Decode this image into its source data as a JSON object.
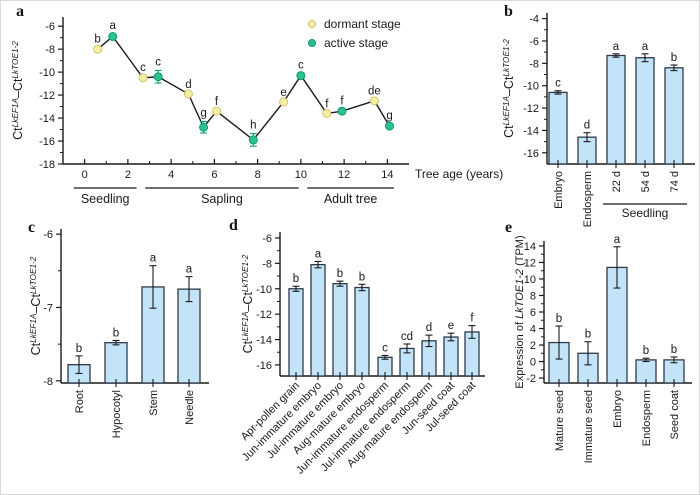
{
  "figure": {
    "panels": {
      "a": {
        "label": "a"
      },
      "b": {
        "label": "b"
      },
      "c": {
        "label": "c"
      },
      "d": {
        "label": "d"
      },
      "e": {
        "label": "e"
      }
    },
    "colors": {
      "bar_fill": "#c3e4f8",
      "bar_stroke": "#2f3b49",
      "dormant_fill": "#f4eea6",
      "dormant_stroke": "#d5c568",
      "active_fill": "#2bbf92",
      "active_stroke": "#0d9c73",
      "axis": "#1a1a1a",
      "text": "#1a1a1a",
      "line": "#1a1a1a"
    }
  },
  "chart_data": [
    {
      "panel": "a",
      "type": "line",
      "xlabel": "Tree age (years)",
      "ylabel_parts": [
        {
          "t": "Ct"
        },
        {
          "t": "LkEF1A",
          "sup": true
        },
        {
          "t": "–"
        },
        {
          "t": "Ct"
        },
        {
          "t": "LkTOE1-2",
          "sup": true
        }
      ],
      "xlim": [
        -1,
        15
      ],
      "ylim": [
        -18,
        -5.2
      ],
      "xticks": [
        0,
        2,
        4,
        6,
        8,
        10,
        12,
        14
      ],
      "x_minor_step": 1,
      "yticks": [
        -6,
        -8,
        -10,
        -12,
        -14,
        -16,
        -18
      ],
      "y_minor_step": 1,
      "legend": [
        {
          "label": "dormant stage",
          "stage": "dormant"
        },
        {
          "label": "active stage",
          "stage": "active"
        }
      ],
      "points": [
        {
          "x": 0.6,
          "y": -8.0,
          "err": 0.15,
          "letter": "b",
          "stage": "dormant"
        },
        {
          "x": 1.3,
          "y": -6.9,
          "err": 0.2,
          "letter": "a",
          "stage": "active"
        },
        {
          "x": 2.7,
          "y": -10.5,
          "err": 0.15,
          "letter": "c",
          "stage": "dormant"
        },
        {
          "x": 3.4,
          "y": -10.4,
          "err": 0.55,
          "letter": "c",
          "stage": "active"
        },
        {
          "x": 4.8,
          "y": -11.9,
          "err": 0.1,
          "letter": "d",
          "stage": "dormant"
        },
        {
          "x": 5.5,
          "y": -14.8,
          "err": 0.5,
          "letter": "g",
          "stage": "active"
        },
        {
          "x": 6.1,
          "y": -13.4,
          "err": 0.1,
          "letter": "f",
          "stage": "dormant"
        },
        {
          "x": 7.8,
          "y": -15.9,
          "err": 0.55,
          "letter": "h",
          "stage": "active"
        },
        {
          "x": 9.2,
          "y": -12.6,
          "err": 0.1,
          "letter": "e",
          "stage": "dormant"
        },
        {
          "x": 10.0,
          "y": -10.3,
          "err": 0.2,
          "letter": "c",
          "stage": "active"
        },
        {
          "x": 11.2,
          "y": -13.6,
          "err": 0.1,
          "letter": "f",
          "stage": "dormant"
        },
        {
          "x": 11.9,
          "y": -13.4,
          "err": 0.15,
          "letter": "f",
          "stage": "active"
        },
        {
          "x": 13.4,
          "y": -12.5,
          "err": 0.1,
          "letter": "de",
          "stage": "dormant"
        },
        {
          "x": 14.1,
          "y": -14.7,
          "err": 0.2,
          "letter": "g",
          "stage": "active"
        }
      ],
      "stage_groups": [
        {
          "label": "Seedling",
          "from": -0.5,
          "to": 2.4
        },
        {
          "label": "Sapling",
          "from": 2.8,
          "to": 9.9
        },
        {
          "label": "Adult tree",
          "from": 10.3,
          "to": 14.3
        }
      ]
    },
    {
      "panel": "b",
      "type": "bar",
      "ylabel_parts": [
        {
          "t": "Ct"
        },
        {
          "t": "LkEF1A",
          "sup": true
        },
        {
          "t": "–"
        },
        {
          "t": "Ct"
        },
        {
          "t": "LkTOE1-2",
          "sup": true
        }
      ],
      "ylim": [
        -17,
        -3.5
      ],
      "yticks": [
        -4,
        -6,
        -8,
        -10,
        -12,
        -14,
        -16
      ],
      "y_minor_step": 1,
      "categories": [
        "Embryo",
        "Endosperm",
        "22 d",
        "54 d",
        "74 d"
      ],
      "values": [
        -10.6,
        -14.6,
        -7.3,
        -7.5,
        -8.4
      ],
      "errors": [
        0.15,
        0.4,
        0.15,
        0.35,
        0.25
      ],
      "letters": [
        "c",
        "d",
        "a",
        "a",
        "b"
      ],
      "group": {
        "label": "Seedling",
        "from": 2,
        "to": 4
      }
    },
    {
      "panel": "c",
      "type": "bar",
      "ylabel_parts": [
        {
          "t": "Ct"
        },
        {
          "t": "LkEF1A",
          "sup": true
        },
        {
          "t": "–"
        },
        {
          "t": "Ct"
        },
        {
          "t": "LkTOE1-2",
          "sup": true
        }
      ],
      "ylim": [
        -8.03,
        -5.93
      ],
      "yticks": [
        -6,
        -7,
        -8
      ],
      "y_minor_step": 0.5,
      "categories": [
        "Root",
        "Hypocotyl",
        "Stem",
        "Needle"
      ],
      "values": [
        -7.78,
        -7.48,
        -6.72,
        -6.75
      ],
      "errors": [
        0.12,
        0.03,
        0.29,
        0.17
      ],
      "letters": [
        "b",
        "b",
        "a",
        "a"
      ]
    },
    {
      "panel": "d",
      "type": "bar",
      "ylabel_parts": [
        {
          "t": "Ct"
        },
        {
          "t": "LkEF1A",
          "sup": true
        },
        {
          "t": "–"
        },
        {
          "t": "Ct"
        },
        {
          "t": "LkTOE1-2",
          "sup": true
        }
      ],
      "ylim": [
        -16.87,
        -5.53
      ],
      "yticks": [
        -6,
        -8,
        -10,
        -12,
        -14,
        -16
      ],
      "y_minor_step": 1,
      "categories": [
        "Apr-pollen grain",
        "Jun-immature embryo",
        "Jul-immature embryo",
        "Aug-mature embryo",
        "Jun-immature endosperm",
        "Jul-immature endosperm",
        "Aug-mature endosperm",
        "Jun-seed coat",
        "Jul-seed coat"
      ],
      "values": [
        -10.0,
        -8.1,
        -9.6,
        -9.9,
        -15.4,
        -14.7,
        -14.1,
        -13.8,
        -13.4
      ],
      "errors": [
        0.2,
        0.25,
        0.2,
        0.25,
        0.15,
        0.35,
        0.45,
        0.3,
        0.5
      ],
      "letters": [
        "b",
        "a",
        "b",
        "b",
        "c",
        "cd",
        "d",
        "e",
        "f"
      ]
    },
    {
      "panel": "e",
      "type": "bar",
      "ylabel_parts": [
        {
          "t": "Expression of "
        },
        {
          "t": "LkTOE1-2",
          "i": true
        },
        {
          "t": " (TPM)"
        }
      ],
      "ylim": [
        -2.6,
        14.6
      ],
      "yticks": [
        -2,
        0,
        2,
        4,
        6,
        8,
        10,
        12,
        14
      ],
      "y_minor_step": 1,
      "categories": [
        "Mature seed",
        "Immature seed",
        "Embryo",
        "Endosperm",
        "Seed coat"
      ],
      "values": [
        2.3,
        1.0,
        11.4,
        0.2,
        0.2
      ],
      "errors": [
        2.0,
        1.4,
        2.5,
        0.2,
        0.35
      ],
      "letters": [
        "b",
        "b",
        "a",
        "b",
        "b"
      ]
    }
  ]
}
